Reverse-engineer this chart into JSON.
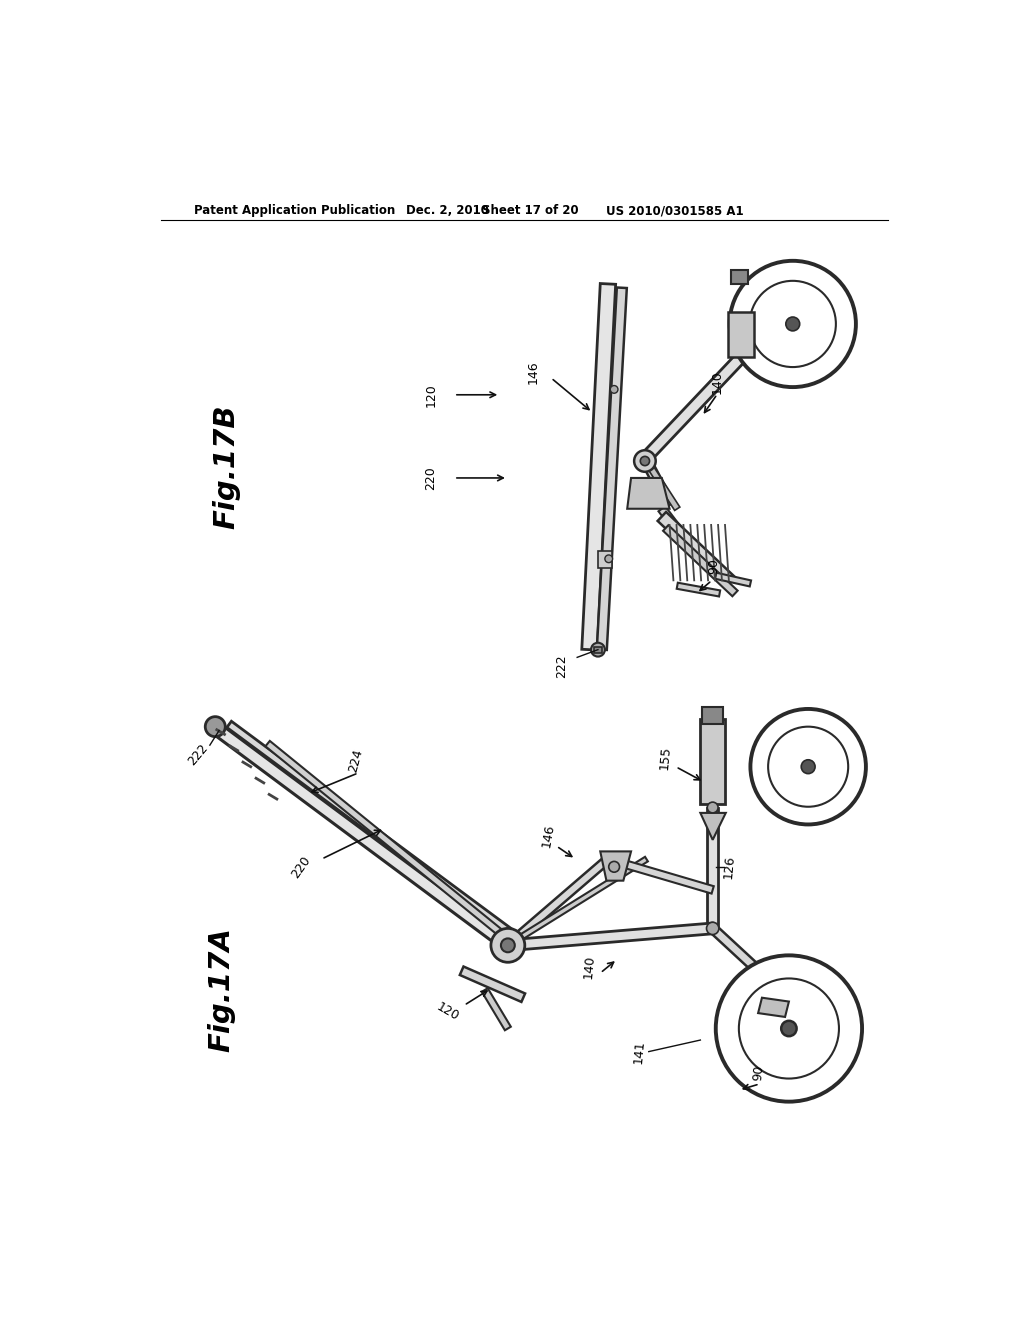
{
  "bg_color": "#ffffff",
  "text_color": "#000000",
  "header_text": "Patent Application Publication",
  "header_date": "Dec. 2, 2010",
  "header_sheet": "Sheet 17 of 20",
  "header_patent": "US 2010/0301585 A1",
  "fig17b_label": "Fig.17B",
  "fig17a_label": "Fig.17A",
  "lc": "#2a2a2a",
  "fc_light": "#e8e8e8",
  "fc_mid": "#d0d0d0",
  "fc_dark": "#b0b0b0",
  "fc_vdark": "#606060"
}
